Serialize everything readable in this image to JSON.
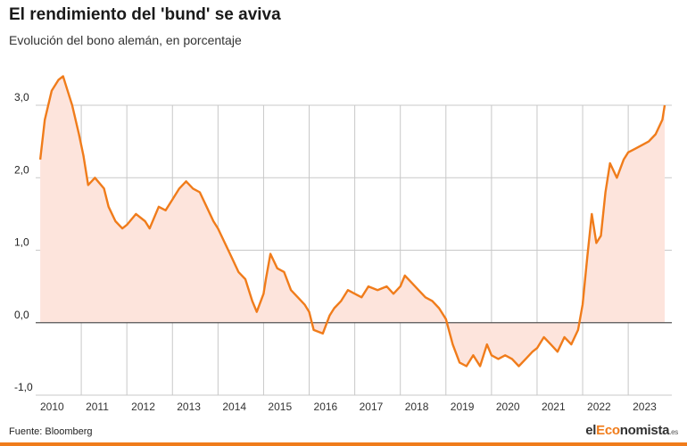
{
  "title": "El rendimiento del 'bund' se aviva",
  "subtitle": "Evolución del bono alemán, en porcentaje",
  "footer": {
    "source": "Fuente: Bloomberg"
  },
  "logo": {
    "part1": "el",
    "part2": "Eco",
    "part3": "nomista",
    "suffix": ".es"
  },
  "colors": {
    "line": "#f07c1b",
    "fill": "#fde4dc",
    "grid": "#c8c8c8",
    "zero": "#555555"
  },
  "chart_data": {
    "type": "area",
    "ylim": [
      -1.0,
      3.0
    ],
    "y_ticks": [
      {
        "value": -1.0,
        "label": "-1,0"
      },
      {
        "value": 0.0,
        "label": "0,0"
      },
      {
        "value": 1.0,
        "label": "1,0"
      },
      {
        "value": 2.0,
        "label": "2,0"
      },
      {
        "value": 3.0,
        "label": "3,0"
      }
    ],
    "x_range": [
      2010.0,
      2023.8
    ],
    "x_ticks": [
      "2010",
      "2011",
      "2012",
      "2013",
      "2014",
      "2015",
      "2016",
      "2017",
      "2018",
      "2019",
      "2020",
      "2021",
      "2022",
      "2023"
    ],
    "series": [
      {
        "x": [
          2010.1,
          2010.2,
          2010.35,
          2010.5,
          2010.6,
          2010.7,
          2010.8,
          2010.95,
          2011.05,
          2011.15,
          2011.3,
          2011.5,
          2011.6,
          2011.75,
          2011.9,
          2012.0,
          2012.2,
          2012.4,
          2012.5,
          2012.7,
          2012.85,
          2013.0,
          2013.15,
          2013.3,
          2013.45,
          2013.6,
          2013.75,
          2013.9,
          2014.0,
          2014.15,
          2014.3,
          2014.45,
          2014.6,
          2014.75,
          2014.85,
          2015.0,
          2015.05,
          2015.15,
          2015.3,
          2015.45,
          2015.6,
          2015.75,
          2015.9,
          2016.0,
          2016.1,
          2016.3,
          2016.45,
          2016.55,
          2016.7,
          2016.85,
          2017.0,
          2017.15,
          2017.3,
          2017.5,
          2017.7,
          2017.85,
          2018.0,
          2018.1,
          2018.25,
          2018.4,
          2018.55,
          2018.7,
          2018.85,
          2019.0,
          2019.15,
          2019.3,
          2019.45,
          2019.6,
          2019.75,
          2019.9,
          2020.0,
          2020.15,
          2020.3,
          2020.45,
          2020.6,
          2020.75,
          2020.9,
          2021.0,
          2021.15,
          2021.3,
          2021.45,
          2021.6,
          2021.75,
          2021.9,
          2022.0,
          2022.1,
          2022.2,
          2022.3,
          2022.4,
          2022.5,
          2022.6,
          2022.75,
          2022.9,
          2023.0,
          2023.15,
          2023.3,
          2023.45,
          2023.6,
          2023.75,
          2023.8
        ],
        "values": [
          2.25,
          2.8,
          3.2,
          3.35,
          3.4,
          3.2,
          3.0,
          2.6,
          2.3,
          1.9,
          2.0,
          1.85,
          1.6,
          1.4,
          1.3,
          1.35,
          1.5,
          1.4,
          1.3,
          1.6,
          1.55,
          1.7,
          1.85,
          1.95,
          1.85,
          1.8,
          1.6,
          1.4,
          1.3,
          1.1,
          0.9,
          0.7,
          0.6,
          0.3,
          0.15,
          0.4,
          0.6,
          0.95,
          0.75,
          0.7,
          0.45,
          0.35,
          0.25,
          0.15,
          -0.1,
          -0.15,
          0.1,
          0.2,
          0.3,
          0.45,
          0.4,
          0.35,
          0.5,
          0.45,
          0.5,
          0.4,
          0.5,
          0.65,
          0.55,
          0.45,
          0.35,
          0.3,
          0.2,
          0.05,
          -0.3,
          -0.55,
          -0.6,
          -0.45,
          -0.6,
          -0.3,
          -0.45,
          -0.5,
          -0.45,
          -0.5,
          -0.6,
          -0.5,
          -0.4,
          -0.35,
          -0.2,
          -0.3,
          -0.4,
          -0.2,
          -0.3,
          -0.1,
          0.25,
          0.9,
          1.5,
          1.1,
          1.2,
          1.8,
          2.2,
          2.0,
          2.25,
          2.35,
          2.4,
          2.45,
          2.5,
          2.6,
          2.8,
          3.0
        ]
      }
    ]
  }
}
